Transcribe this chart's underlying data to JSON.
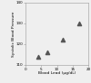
{
  "x": [
    4,
    7,
    12,
    17
  ],
  "y": [
    114,
    116,
    122,
    130
  ],
  "xlabel": "Blood Lead (μg/dL)",
  "ylabel": "Systolic Blood Pressure",
  "xlim": [
    0,
    20
  ],
  "ylim": [
    110,
    140
  ],
  "xticks": [
    0,
    5,
    10,
    15,
    20
  ],
  "yticks": [
    110,
    120,
    130,
    140
  ],
  "marker": "^",
  "marker_color": "#555555",
  "marker_size": 3,
  "background_color": "#efefef",
  "label_fontsize": 3.2,
  "tick_fontsize": 3.0
}
